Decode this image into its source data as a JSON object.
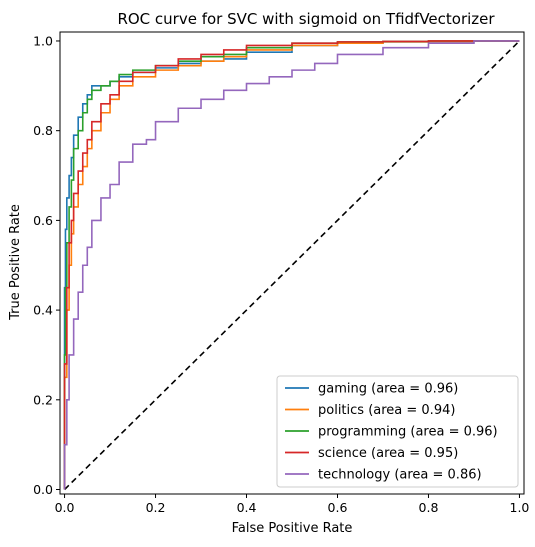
{
  "chart_data": {
    "type": "line",
    "title": "ROC curve for SVC with sigmoid on TfidfVectorizer",
    "xlabel": "False Positive Rate",
    "ylabel": "True Positive Rate",
    "xlim": [
      -0.01,
      1.01
    ],
    "ylim": [
      -0.01,
      1.02
    ],
    "x_ticks": [
      "0.0",
      "0.2",
      "0.4",
      "0.6",
      "0.8",
      "1.0"
    ],
    "y_ticks": [
      "0.0",
      "0.2",
      "0.4",
      "0.6",
      "0.8",
      "1.0"
    ],
    "grid": false,
    "legend_position": "lower-right",
    "diagonal": {
      "x": [
        0,
        1
      ],
      "y": [
        0,
        1
      ],
      "style": "dashed",
      "color": "#000000"
    },
    "series": [
      {
        "name": "gaming (area = 0.96)",
        "color": "#1f77b4",
        "x": [
          0,
          0.002,
          0.005,
          0.01,
          0.015,
          0.02,
          0.03,
          0.04,
          0.05,
          0.06,
          0.08,
          0.1,
          0.12,
          0.15,
          0.2,
          0.25,
          0.3,
          0.35,
          0.4,
          0.5,
          0.6,
          0.7,
          0.8,
          0.9,
          1.0
        ],
        "y": [
          0,
          0.45,
          0.58,
          0.65,
          0.7,
          0.74,
          0.79,
          0.83,
          0.86,
          0.88,
          0.9,
          0.9,
          0.91,
          0.92,
          0.93,
          0.94,
          0.95,
          0.955,
          0.96,
          0.975,
          0.99,
          0.995,
          0.998,
          0.999,
          1.0
        ]
      },
      {
        "name": "politics (area = 0.94)",
        "color": "#ff7f0e",
        "x": [
          0,
          0.005,
          0.01,
          0.015,
          0.02,
          0.03,
          0.04,
          0.05,
          0.06,
          0.08,
          0.1,
          0.12,
          0.15,
          0.2,
          0.25,
          0.3,
          0.35,
          0.4,
          0.5,
          0.6,
          0.7,
          0.8,
          0.9,
          1.0
        ],
        "y": [
          0,
          0.25,
          0.4,
          0.5,
          0.57,
          0.63,
          0.68,
          0.72,
          0.76,
          0.8,
          0.84,
          0.87,
          0.9,
          0.92,
          0.935,
          0.945,
          0.955,
          0.965,
          0.98,
          0.99,
          0.995,
          0.998,
          0.999,
          1.0
        ]
      },
      {
        "name": "programming (area = 0.96)",
        "color": "#2ca02c",
        "x": [
          0,
          0.002,
          0.005,
          0.01,
          0.015,
          0.02,
          0.03,
          0.04,
          0.05,
          0.06,
          0.08,
          0.1,
          0.12,
          0.15,
          0.2,
          0.25,
          0.3,
          0.35,
          0.4,
          0.5,
          0.6,
          0.7,
          0.8,
          0.9,
          1.0
        ],
        "y": [
          0,
          0.3,
          0.45,
          0.55,
          0.63,
          0.69,
          0.76,
          0.8,
          0.84,
          0.87,
          0.89,
          0.9,
          0.91,
          0.925,
          0.935,
          0.945,
          0.955,
          0.965,
          0.97,
          0.985,
          0.995,
          0.998,
          0.999,
          1.0,
          1.0
        ]
      },
      {
        "name": "science (area = 0.95)",
        "color": "#d62728",
        "x": [
          0,
          0.005,
          0.01,
          0.015,
          0.02,
          0.03,
          0.04,
          0.05,
          0.06,
          0.08,
          0.1,
          0.12,
          0.15,
          0.2,
          0.25,
          0.3,
          0.35,
          0.4,
          0.5,
          0.6,
          0.7,
          0.8,
          0.9,
          1.0
        ],
        "y": [
          0,
          0.28,
          0.45,
          0.55,
          0.6,
          0.66,
          0.71,
          0.75,
          0.78,
          0.82,
          0.86,
          0.88,
          0.91,
          0.93,
          0.945,
          0.96,
          0.97,
          0.98,
          0.99,
          0.995,
          0.998,
          0.999,
          1.0,
          1.0
        ]
      },
      {
        "name": "technology (area = 0.86)",
        "color": "#9467bd",
        "x": [
          0,
          0.005,
          0.01,
          0.02,
          0.03,
          0.04,
          0.05,
          0.06,
          0.08,
          0.1,
          0.12,
          0.15,
          0.18,
          0.2,
          0.25,
          0.3,
          0.35,
          0.4,
          0.45,
          0.5,
          0.55,
          0.6,
          0.7,
          0.8,
          0.9,
          1.0
        ],
        "y": [
          0,
          0.1,
          0.2,
          0.3,
          0.38,
          0.44,
          0.5,
          0.54,
          0.6,
          0.65,
          0.68,
          0.73,
          0.77,
          0.78,
          0.82,
          0.85,
          0.87,
          0.89,
          0.905,
          0.92,
          0.935,
          0.95,
          0.97,
          0.985,
          0.995,
          1.0
        ]
      }
    ]
  }
}
